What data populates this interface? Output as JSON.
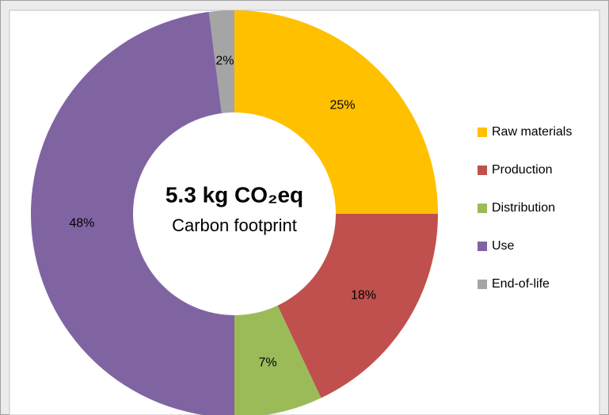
{
  "chart_data": {
    "type": "donut",
    "center_title": "5.3 kg CO₂eq",
    "center_subtitle": "Carbon footprint",
    "categories": [
      "Raw materials",
      "Production",
      "Distribution",
      "Use",
      "End-of-life"
    ],
    "values": [
      25,
      18,
      7,
      48,
      2
    ],
    "value_labels": [
      "25%",
      "18%",
      "7%",
      "48%",
      "2%"
    ],
    "colors": [
      "#ffc000",
      "#c0504d",
      "#9bbb59",
      "#8064a2",
      "#a5a5a5"
    ],
    "legend": "right"
  }
}
